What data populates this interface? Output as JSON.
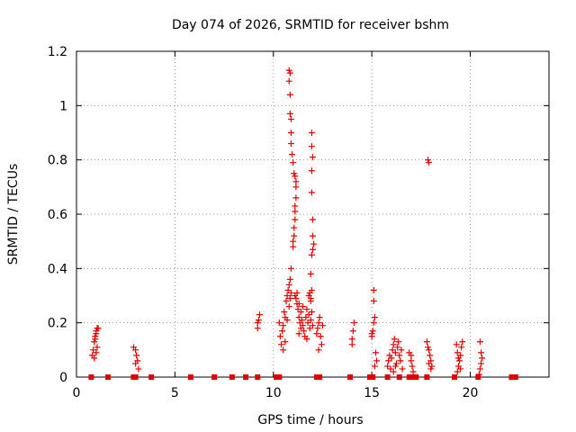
{
  "chart_data": {
    "type": "scatter",
    "title": "Day 074 of 2026, SRMTID for receiver bshm",
    "xlabel": "GPS time / hours",
    "ylabel": "SRMTID / TECUs",
    "xlim": [
      0,
      24
    ],
    "ylim": [
      0,
      1.2
    ],
    "xticks": [
      0,
      5,
      10,
      15,
      20
    ],
    "yticks": [
      0,
      0.2,
      0.4,
      0.6,
      0.8,
      1,
      1.2
    ],
    "xtick_labels": [
      "0",
      "5",
      "10",
      "15",
      "20"
    ],
    "ytick_labels": [
      "0",
      "0.2",
      "0.4",
      "0.6",
      "0.8",
      "1",
      "1.2"
    ],
    "grid": true,
    "marker_color": "#e00000",
    "series": [
      {
        "name": "SRMTID",
        "marker": "plus",
        "points": [
          [
            0.8,
            0.08
          ],
          [
            0.85,
            0.1
          ],
          [
            0.9,
            0.13
          ],
          [
            0.95,
            0.15
          ],
          [
            1.0,
            0.17
          ],
          [
            1.05,
            0.18
          ],
          [
            0.9,
            0.07
          ],
          [
            1.0,
            0.09
          ],
          [
            1.05,
            0.11
          ],
          [
            0.95,
            0.14
          ],
          [
            1.0,
            0.16
          ],
          [
            1.1,
            0.18
          ],
          [
            2.9,
            0.11
          ],
          [
            3.0,
            0.1
          ],
          [
            3.05,
            0.08
          ],
          [
            3.1,
            0.06
          ],
          [
            3.0,
            0.05
          ],
          [
            3.15,
            0.03
          ],
          [
            9.2,
            0.18
          ],
          [
            9.25,
            0.21
          ],
          [
            9.3,
            0.23
          ],
          [
            9.2,
            0.2
          ],
          [
            10.3,
            0.2
          ],
          [
            10.35,
            0.15
          ],
          [
            10.4,
            0.12
          ],
          [
            10.45,
            0.17
          ],
          [
            10.5,
            0.19
          ],
          [
            10.55,
            0.24
          ],
          [
            10.6,
            0.22
          ],
          [
            10.65,
            0.28
          ],
          [
            10.7,
            0.3
          ],
          [
            10.75,
            0.32
          ],
          [
            10.8,
            0.34
          ],
          [
            10.85,
            0.36
          ],
          [
            10.9,
            0.4
          ],
          [
            10.8,
            0.26
          ],
          [
            10.7,
            0.21
          ],
          [
            10.5,
            0.1
          ],
          [
            10.6,
            0.13
          ],
          [
            10.9,
            0.31
          ],
          [
            10.85,
            0.29
          ],
          [
            10.8,
            1.13
          ],
          [
            10.85,
            1.12
          ],
          [
            10.8,
            1.09
          ],
          [
            10.85,
            1.04
          ],
          [
            10.85,
            0.97
          ],
          [
            10.9,
            0.95
          ],
          [
            10.9,
            0.9
          ],
          [
            10.9,
            0.86
          ],
          [
            10.95,
            0.82
          ],
          [
            11.0,
            0.79
          ],
          [
            11.05,
            0.75
          ],
          [
            11.0,
            0.5
          ],
          [
            11.0,
            0.48
          ],
          [
            11.05,
            0.52
          ],
          [
            11.05,
            0.55
          ],
          [
            11.1,
            0.58
          ],
          [
            11.1,
            0.61
          ],
          [
            11.1,
            0.63
          ],
          [
            11.15,
            0.66
          ],
          [
            11.15,
            0.7
          ],
          [
            11.15,
            0.72
          ],
          [
            11.1,
            0.74
          ],
          [
            11.1,
            0.3
          ],
          [
            11.15,
            0.29
          ],
          [
            11.2,
            0.27
          ],
          [
            11.25,
            0.25
          ],
          [
            11.3,
            0.22
          ],
          [
            11.35,
            0.2
          ],
          [
            11.4,
            0.18
          ],
          [
            11.2,
            0.31
          ],
          [
            11.3,
            0.27
          ],
          [
            11.4,
            0.24
          ],
          [
            11.45,
            0.21
          ],
          [
            11.5,
            0.19
          ],
          [
            11.55,
            0.17
          ],
          [
            11.6,
            0.15
          ],
          [
            11.65,
            0.22
          ],
          [
            11.7,
            0.25
          ],
          [
            11.75,
            0.2
          ],
          [
            11.8,
            0.23
          ],
          [
            11.85,
            0.18
          ],
          [
            11.9,
            0.21
          ],
          [
            11.95,
            0.24
          ],
          [
            12.0,
            0.19
          ],
          [
            11.3,
            0.16
          ],
          [
            11.5,
            0.26
          ],
          [
            11.7,
            0.14
          ],
          [
            11.9,
            0.28
          ],
          [
            11.8,
            0.3
          ],
          [
            11.85,
            0.31
          ],
          [
            11.9,
            0.29
          ],
          [
            11.95,
            0.32
          ],
          [
            11.9,
            0.38
          ],
          [
            11.95,
            0.45
          ],
          [
            12.0,
            0.47
          ],
          [
            12.05,
            0.49
          ],
          [
            12.0,
            0.52
          ],
          [
            12.0,
            0.58
          ],
          [
            11.95,
            0.68
          ],
          [
            11.95,
            0.76
          ],
          [
            12.0,
            0.81
          ],
          [
            11.95,
            0.85
          ],
          [
            11.95,
            0.9
          ],
          [
            12.2,
            0.16
          ],
          [
            12.25,
            0.18
          ],
          [
            12.3,
            0.2
          ],
          [
            12.35,
            0.22
          ],
          [
            12.4,
            0.15
          ],
          [
            12.45,
            0.12
          ],
          [
            12.5,
            0.19
          ],
          [
            12.3,
            0.1
          ],
          [
            14.0,
            0.14
          ],
          [
            14.05,
            0.17
          ],
          [
            14.1,
            0.2
          ],
          [
            14.0,
            0.12
          ],
          [
            15.0,
            0.16
          ],
          [
            15.05,
            0.17
          ],
          [
            15.1,
            0.2
          ],
          [
            15.15,
            0.22
          ],
          [
            15.1,
            0.28
          ],
          [
            15.1,
            0.32
          ],
          [
            15.2,
            0.09
          ],
          [
            15.25,
            0.06
          ],
          [
            15.15,
            0.04
          ],
          [
            15.0,
            0.15
          ],
          [
            15.8,
            0.04
          ],
          [
            15.85,
            0.06
          ],
          [
            15.9,
            0.08
          ],
          [
            15.95,
            0.03
          ],
          [
            16.0,
            0.07
          ],
          [
            16.05,
            0.1
          ],
          [
            16.1,
            0.12
          ],
          [
            16.15,
            0.14
          ],
          [
            16.2,
            0.09
          ],
          [
            16.25,
            0.05
          ],
          [
            16.3,
            0.11
          ],
          [
            16.35,
            0.13
          ],
          [
            16.4,
            0.08
          ],
          [
            16.45,
            0.06
          ],
          [
            16.5,
            0.1
          ],
          [
            16.55,
            0.03
          ],
          [
            16.1,
            0.02
          ],
          [
            16.2,
            0.04
          ],
          [
            16.9,
            0.09
          ],
          [
            17.0,
            0.06
          ],
          [
            17.05,
            0.04
          ],
          [
            17.1,
            0.02
          ],
          [
            17.0,
            0.08
          ],
          [
            17.85,
            0.8
          ],
          [
            17.9,
            0.79
          ],
          [
            17.8,
            0.13
          ],
          [
            17.85,
            0.11
          ],
          [
            17.9,
            0.1
          ],
          [
            17.95,
            0.08
          ],
          [
            18.0,
            0.06
          ],
          [
            18.05,
            0.04
          ],
          [
            17.9,
            0.05
          ],
          [
            18.0,
            0.03
          ],
          [
            19.3,
            0.12
          ],
          [
            19.35,
            0.09
          ],
          [
            19.4,
            0.07
          ],
          [
            19.45,
            0.06
          ],
          [
            19.5,
            0.08
          ],
          [
            19.55,
            0.11
          ],
          [
            19.6,
            0.13
          ],
          [
            19.4,
            0.04
          ],
          [
            19.5,
            0.03
          ],
          [
            19.35,
            0.02
          ],
          [
            20.5,
            0.13
          ],
          [
            20.55,
            0.09
          ],
          [
            20.6,
            0.07
          ],
          [
            20.55,
            0.05
          ],
          [
            20.5,
            0.03
          ],
          [
            20.45,
            0.01
          ]
        ]
      },
      {
        "name": "zero",
        "marker": "square",
        "points": [
          [
            0.75,
            0
          ],
          [
            1.6,
            0
          ],
          [
            2.9,
            0
          ],
          [
            3.0,
            0
          ],
          [
            3.8,
            0
          ],
          [
            5.8,
            0
          ],
          [
            7.0,
            0
          ],
          [
            7.9,
            0
          ],
          [
            8.6,
            0
          ],
          [
            9.2,
            0
          ],
          [
            10.15,
            0
          ],
          [
            10.3,
            0
          ],
          [
            12.2,
            0
          ],
          [
            12.35,
            0
          ],
          [
            13.9,
            0
          ],
          [
            14.9,
            0
          ],
          [
            15.05,
            0
          ],
          [
            15.8,
            0
          ],
          [
            16.4,
            0
          ],
          [
            16.9,
            0
          ],
          [
            17.0,
            0
          ],
          [
            17.25,
            0
          ],
          [
            17.8,
            0
          ],
          [
            19.2,
            0
          ],
          [
            20.4,
            0
          ],
          [
            22.1,
            0
          ],
          [
            22.3,
            0
          ]
        ]
      }
    ]
  }
}
